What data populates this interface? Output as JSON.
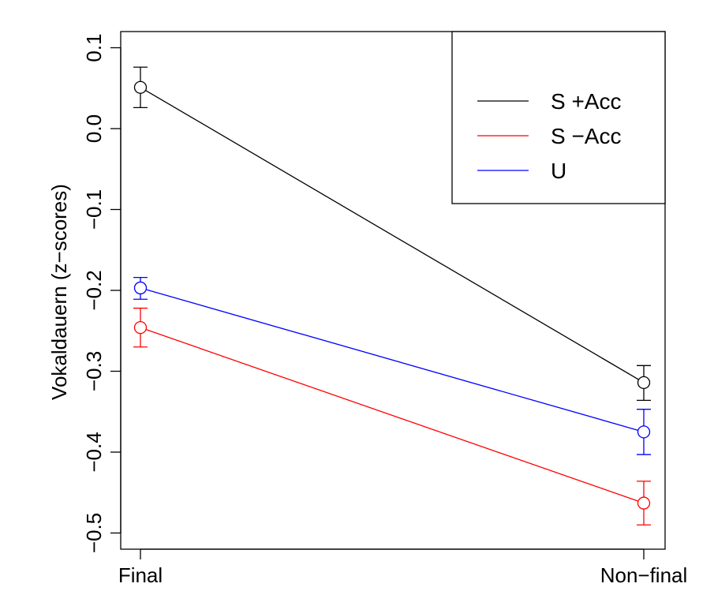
{
  "chart_data": {
    "type": "line",
    "title": "",
    "xlabel": "",
    "ylabel": "Vokaldauern (z−scores)",
    "categories": [
      "Final",
      "Non−final"
    ],
    "ylim": [
      -0.52,
      0.12
    ],
    "yticks": [
      0.1,
      0.0,
      -0.1,
      -0.2,
      -0.3,
      -0.4,
      -0.5
    ],
    "ytick_labels": [
      "0.1",
      "0.0",
      "−0.1",
      "−0.2",
      "−0.3",
      "−0.4",
      "−0.5"
    ],
    "grid": false,
    "legend_position": "top-right",
    "series": [
      {
        "name": "S +Acc",
        "color": "#000000",
        "values": [
          0.051,
          -0.314
        ],
        "err_low": [
          0.026,
          -0.336
        ],
        "err_high": [
          0.076,
          -0.293
        ]
      },
      {
        "name": "S −Acc",
        "color": "#ff0000",
        "values": [
          -0.246,
          -0.463
        ],
        "err_low": [
          -0.27,
          -0.49
        ],
        "err_high": [
          -0.222,
          -0.436
        ]
      },
      {
        "name": "U",
        "color": "#0000ff",
        "values": [
          -0.197,
          -0.375
        ],
        "err_low": [
          -0.211,
          -0.403
        ],
        "err_high": [
          -0.184,
          -0.347
        ]
      }
    ]
  }
}
